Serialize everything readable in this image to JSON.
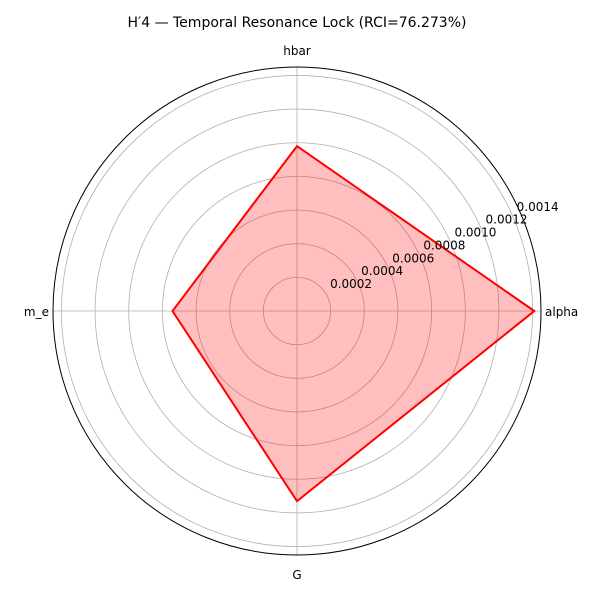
{
  "chart_data": {
    "type": "radar",
    "title": "H′4 — Temporal Resonance Lock (RCI=76.273%)",
    "categories": [
      "alpha",
      "hbar",
      "m_e",
      "G"
    ],
    "series": [
      {
        "values": [
          0.00141,
          0.00098,
          0.00074,
          0.00113
        ],
        "color": "#ff0000",
        "fill": "#ff0000",
        "fill_opacity": 0.25
      }
    ],
    "rlim": [
      0,
      0.00145
    ],
    "rticks": [
      0.0002,
      0.0004,
      0.0006,
      0.0008,
      0.001,
      0.0012,
      0.0014
    ],
    "rtick_labels": [
      "0.0002",
      "0.0004",
      "0.0006",
      "0.0008",
      "0.0010",
      "0.0012",
      "0.0014"
    ],
    "grid": true
  }
}
